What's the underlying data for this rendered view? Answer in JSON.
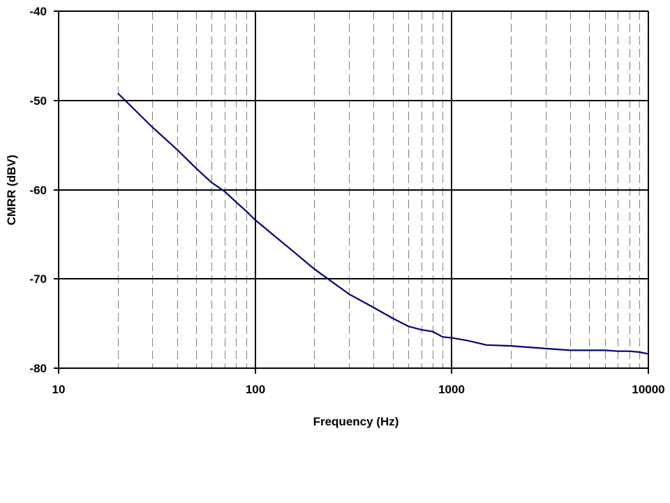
{
  "chart_data": {
    "type": "line",
    "title": "",
    "xlabel": "Frequency (Hz)",
    "ylabel": "CMRR (dBV)",
    "xscale": "log",
    "xlim": [
      10,
      10000
    ],
    "ylim": [
      -80,
      -40
    ],
    "xticks": [
      "10",
      "100",
      "1000",
      "10000"
    ],
    "yticks": [
      "-40",
      "-50",
      "-60",
      "-70",
      "-80"
    ],
    "grid": {
      "major": "solid black",
      "minor_x": "dashed gray"
    },
    "legend": null,
    "line_color": "#000080",
    "series": [
      {
        "name": "CMRR",
        "x": [
          20,
          30,
          40,
          50,
          60,
          70,
          80,
          90,
          100,
          150,
          200,
          300,
          400,
          500,
          600,
          700,
          800,
          900,
          1000,
          1200,
          1500,
          2000,
          3000,
          4000,
          5000,
          6000,
          7000,
          8000,
          9000,
          10000
        ],
        "values": [
          -49.2,
          -53.0,
          -55.5,
          -57.6,
          -59.2,
          -60.2,
          -61.4,
          -62.4,
          -63.4,
          -66.6,
          -68.9,
          -71.7,
          -73.2,
          -74.4,
          -75.3,
          -75.7,
          -75.9,
          -76.5,
          -76.6,
          -76.9,
          -77.4,
          -77.5,
          -77.8,
          -78.0,
          -78.0,
          -78.0,
          -78.1,
          -78.1,
          -78.2,
          -78.4
        ]
      }
    ]
  }
}
